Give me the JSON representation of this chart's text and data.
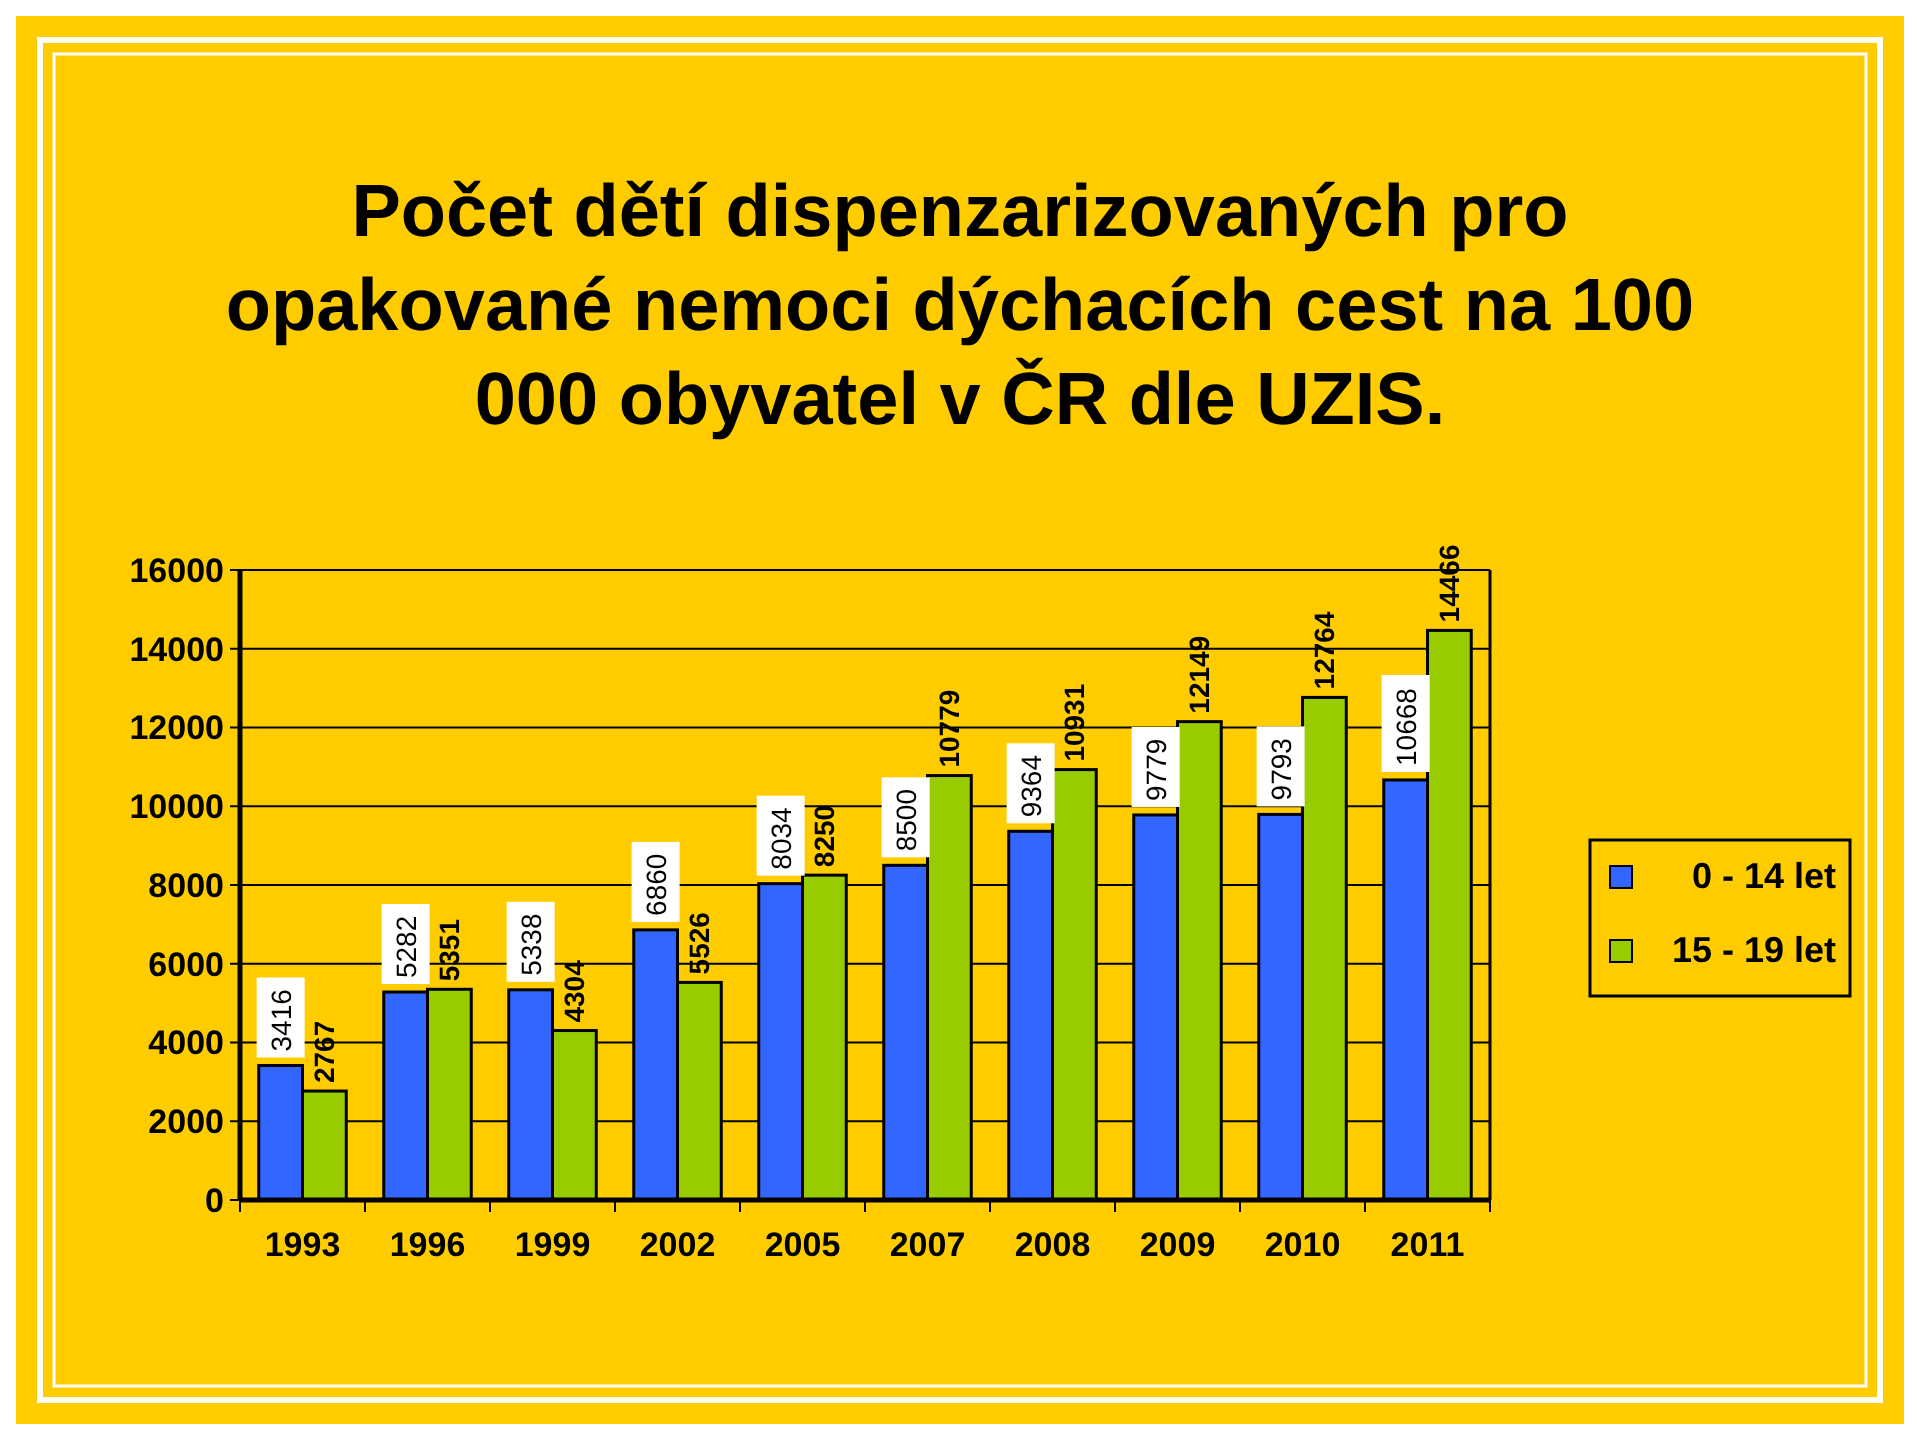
{
  "chart_data": {
    "type": "bar",
    "title": "Počet dětí dispenzarizovaných pro opakované nemoci dýchacích cest na 100 000 obyvatel v ČR dle UZIS.",
    "categories": [
      "1993",
      "1996",
      "1999",
      "2002",
      "2005",
      "2007",
      "2008",
      "2009",
      "2010",
      "2011"
    ],
    "series": [
      {
        "name": "0 - 14 let",
        "color": "#3366ff",
        "values": [
          3416,
          5282,
          5338,
          6860,
          8034,
          8500,
          9364,
          9779,
          9793,
          10668
        ]
      },
      {
        "name": "15 - 19 let",
        "color": "#99cc00",
        "values": [
          2767,
          5351,
          4304,
          5526,
          8250,
          10779,
          10931,
          12149,
          12764,
          14466
        ]
      }
    ],
    "ylim": [
      0,
      16000
    ],
    "yticks": [
      0,
      2000,
      4000,
      6000,
      8000,
      10000,
      12000,
      14000,
      16000
    ],
    "grid": "y",
    "legend": "right",
    "data_labels": true
  }
}
